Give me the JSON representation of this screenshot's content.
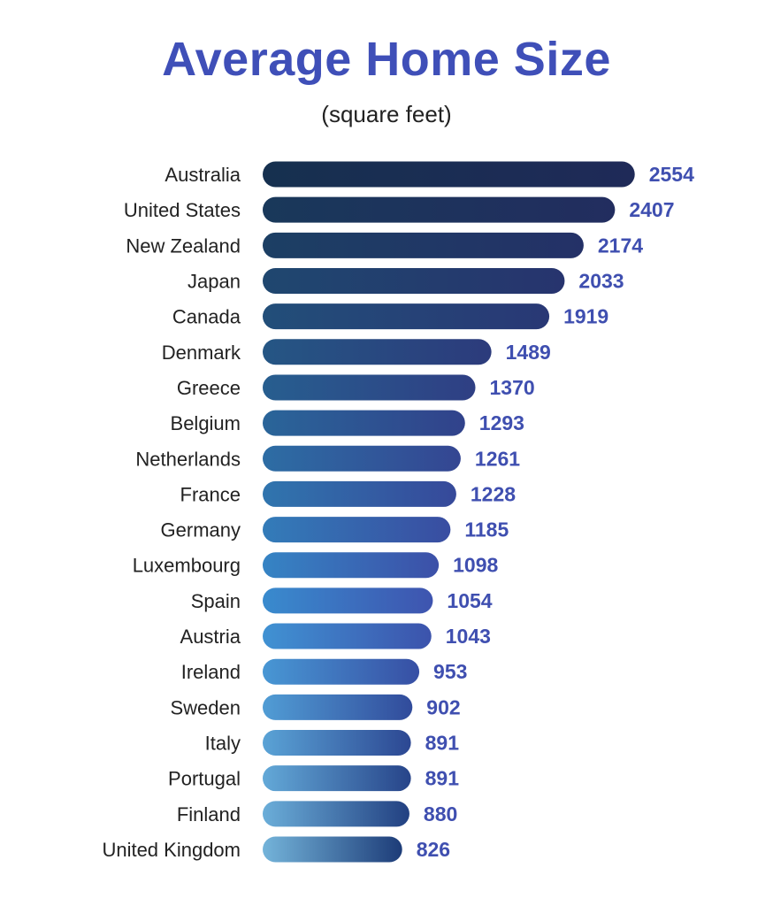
{
  "chart_data": {
    "type": "bar",
    "orientation": "horizontal",
    "title": "Average Home Size",
    "subtitle": "(square feet)",
    "xlabel": "",
    "ylabel": "",
    "categories": [
      "Australia",
      "United States",
      "New Zealand",
      "Japan",
      "Canada",
      "Denmark",
      "Greece",
      "Belgium",
      "Netherlands",
      "France",
      "Germany",
      "Luxembourg",
      "Spain",
      "Austria",
      "Ireland",
      "Sweden",
      "Italy",
      "Portugal",
      "Finland",
      "United Kingdom"
    ],
    "values": [
      2554,
      2407,
      2174,
      2033,
      1919,
      1489,
      1370,
      1293,
      1261,
      1228,
      1185,
      1098,
      1054,
      1043,
      953,
      902,
      891,
      891,
      880,
      826
    ],
    "grid": false,
    "legend": "none",
    "colors": {
      "title": "#3f4fb8",
      "value_label": "#3f4fb0",
      "bar_left_top": "#16304f",
      "bar_left_mid": "#3a8ed2",
      "bar_left_bottom": "#74b4da",
      "bar_right_top": "#1f2a58",
      "bar_right_mid": "#3f55b2",
      "bar_right_bottom": "#1d3c78"
    }
  }
}
